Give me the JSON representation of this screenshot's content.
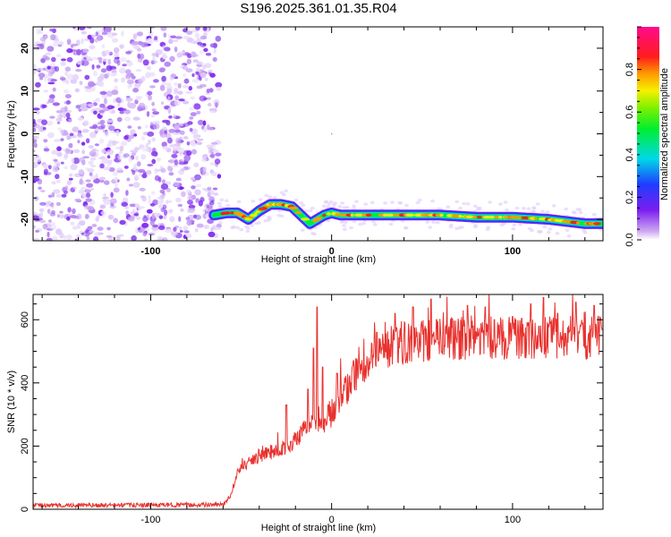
{
  "chart_data": [
    {
      "type": "heatmap",
      "title": "S196.2025.361.01.35.R04",
      "xlabel": "Height of straight line (km)",
      "ylabel": "Frequency (Hz)",
      "xlim": [
        -165,
        150
      ],
      "ylim": [
        -25,
        25
      ],
      "xticks": [
        -100,
        0,
        100
      ],
      "xtick_labels": [
        "-100",
        "0",
        "100"
      ],
      "yticks": [
        20,
        10,
        0,
        -10,
        -20
      ],
      "ytick_labels": [
        "20",
        "10",
        "0",
        "-10",
        "-20"
      ],
      "colorbar": {
        "label": "Normalized spectral amplitude",
        "range": [
          0,
          1
        ],
        "ticks": [
          0.0,
          0.2,
          0.4,
          0.6,
          0.8
        ],
        "tick_labels": [
          "0.0",
          "0.2",
          "0.4",
          "0.6",
          "0.8"
        ]
      },
      "noise_region_x": [
        -165,
        -65
      ],
      "ridge": {
        "x": [
          -65,
          -58,
          -52,
          -46,
          -40,
          -34,
          -28,
          -22,
          -17,
          -12,
          -8,
          -4,
          0,
          5,
          12,
          25,
          40,
          60,
          80,
          100,
          120,
          140,
          150
        ],
        "y": [
          -19,
          -18.5,
          -18.5,
          -20,
          -18,
          -16.5,
          -16.5,
          -17,
          -19,
          -21,
          -20,
          -19,
          -18.5,
          -19,
          -19,
          -19,
          -19,
          -19,
          -19.5,
          -19.5,
          -20,
          -21,
          -21
        ]
      }
    },
    {
      "type": "line",
      "xlabel": "Height of straight line (km)",
      "ylabel": "SNR (10 * v/v)",
      "xlim": [
        -165,
        150
      ],
      "ylim": [
        0,
        680
      ],
      "xticks": [
        -100,
        0,
        100
      ],
      "xtick_labels": [
        "-100",
        "0",
        "100"
      ],
      "yticks": [
        0,
        200,
        400,
        600
      ],
      "ytick_labels": [
        "0",
        "200",
        "400",
        "600"
      ],
      "series": [
        {
          "name": "SNR",
          "color": "#e8322e",
          "trend_x": [
            -165,
            -60,
            -56,
            -52,
            -45,
            -40,
            -35,
            -30,
            -25,
            -20,
            -15,
            -10,
            -5,
            0,
            5,
            10,
            15,
            20,
            25,
            30,
            40,
            50,
            60,
            80,
            100,
            120,
            150
          ],
          "trend_y": [
            12,
            14,
            40,
            120,
            150,
            170,
            180,
            185,
            200,
            220,
            250,
            280,
            260,
            300,
            360,
            390,
            440,
            470,
            500,
            510,
            525,
            530,
            540,
            545,
            540,
            540,
            545
          ],
          "spikes": [
            [
              -8,
              640
            ],
            [
              -10,
              510
            ],
            [
              -5,
              450
            ],
            [
              -13,
              380
            ],
            [
              -25,
              330
            ],
            [
              -2,
              330
            ],
            [
              3,
              430
            ],
            [
              12,
              470
            ],
            [
              25,
              560
            ],
            [
              35,
              620
            ],
            [
              45,
              640
            ],
            [
              55,
              665
            ],
            [
              58,
              600
            ],
            [
              75,
              645
            ],
            [
              85,
              640
            ],
            [
              90,
              600
            ],
            [
              100,
              610
            ],
            [
              110,
              650
            ],
            [
              117,
              670
            ],
            [
              125,
              620
            ],
            [
              135,
              655
            ],
            [
              145,
              645
            ]
          ]
        }
      ]
    }
  ]
}
